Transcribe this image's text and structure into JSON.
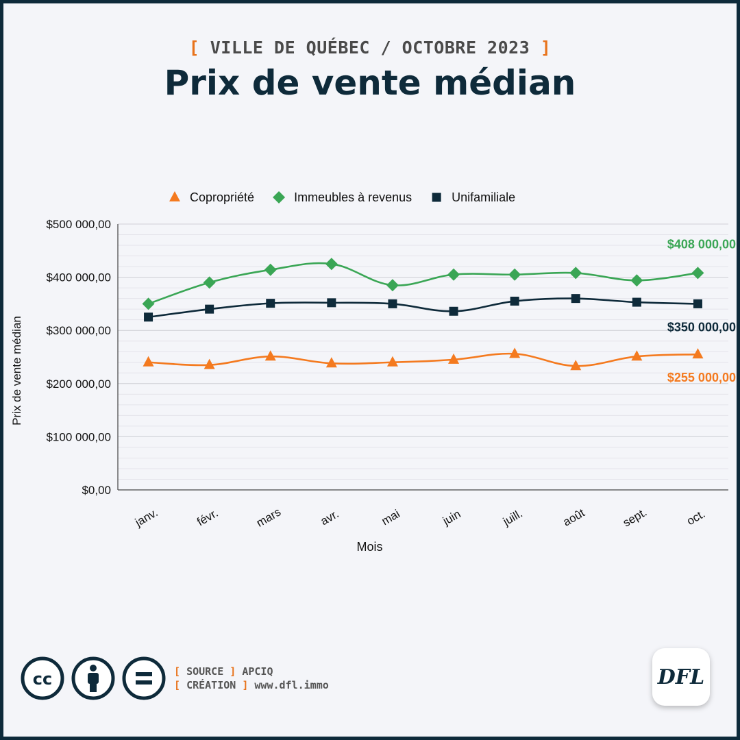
{
  "header": {
    "supertitle_open": "[",
    "supertitle": "VILLE DE QUÉBEC / OCTOBRE 2023",
    "supertitle_close": "]",
    "title": "Prix de vente médian"
  },
  "chart_data": {
    "type": "line",
    "title": "Prix de vente médian",
    "xlabel": "Mois",
    "ylabel": "Prix de vente médian",
    "categories": [
      "janv.",
      "févr.",
      "mars",
      "avr.",
      "mai",
      "juin",
      "juill.",
      "août",
      "sept.",
      "oct."
    ],
    "ylim": [
      0,
      500000
    ],
    "yticks": [
      0,
      100000,
      200000,
      300000,
      400000,
      500000
    ],
    "ytick_labels": [
      "$0,00",
      "$100 000,00",
      "$200 000,00",
      "$300 000,00",
      "$400 000,00",
      "$500 000,00"
    ],
    "grid": true,
    "legend_position": "top",
    "series": [
      {
        "name": "Copropriété",
        "marker": "triangle",
        "color": "#f47a1f",
        "values": [
          240000,
          235000,
          251000,
          238000,
          240000,
          245000,
          256000,
          233000,
          251000,
          255000
        ],
        "end_label": "$255 000,00"
      },
      {
        "name": "Immeubles à revenus",
        "marker": "diamond",
        "color": "#3aa655",
        "values": [
          350000,
          390000,
          414000,
          425000,
          385000,
          405000,
          405000,
          408000,
          394000,
          408000
        ],
        "end_label": "$408 000,00"
      },
      {
        "name": "Unifamiliale",
        "marker": "square",
        "color": "#0e2a3a",
        "values": [
          325000,
          340000,
          351000,
          352000,
          350000,
          336000,
          355000,
          360000,
          353000,
          350000
        ],
        "end_label": "$350 000,00"
      }
    ]
  },
  "footer": {
    "source_key": "SOURCE",
    "source_value": "APCIQ",
    "creation_key": "CRÉATION",
    "creation_value": "www.dfl.immo",
    "bracket_open": "[",
    "bracket_close": "]",
    "license_icons": [
      "cc-icon",
      "attribution-icon",
      "no-derivatives-icon"
    ],
    "logo_text": "DFL"
  },
  "colors": {
    "frame": "#0e2a3a",
    "background": "#f4f5f9",
    "accent": "#e8731c"
  }
}
